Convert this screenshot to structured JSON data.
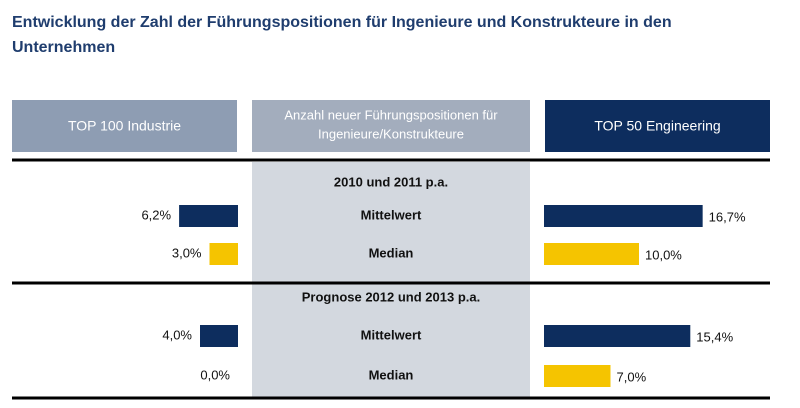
{
  "chart_data": {
    "type": "bar",
    "title": "Entwicklung der Zahl der Führungspositionen für Ingenieure und Konstrukteure in den Unternehmen",
    "center_header": [
      "Anzahl neuer Führungspositionen für",
      "Ingenieure/Konstrukteure"
    ],
    "groups": [
      "2010 und 2011 p.a.",
      "Prognose 2012 und 2013 p.a."
    ],
    "categories": [
      "Mittelwert",
      "Median",
      "Mittelwert",
      "Median"
    ],
    "category_colors": [
      "#0d2d5e",
      "#f5c400",
      "#0d2d5e",
      "#f5c400"
    ],
    "xlim": [
      0,
      20
    ],
    "series": [
      {
        "name": "TOP 100 Industrie",
        "color": "#8e9db3",
        "values": [
          6.2,
          3.0,
          4.0,
          0.0
        ],
        "value_labels": [
          "6,2%",
          "3,0%",
          "4,0%",
          "0,0%"
        ]
      },
      {
        "name": "TOP 50 Engineering",
        "color": "#0d2d5e",
        "values": [
          16.7,
          10.0,
          15.4,
          7.0
        ],
        "value_labels": [
          "16,7%",
          "10,0%",
          "15,4%",
          "7,0%"
        ]
      }
    ]
  }
}
